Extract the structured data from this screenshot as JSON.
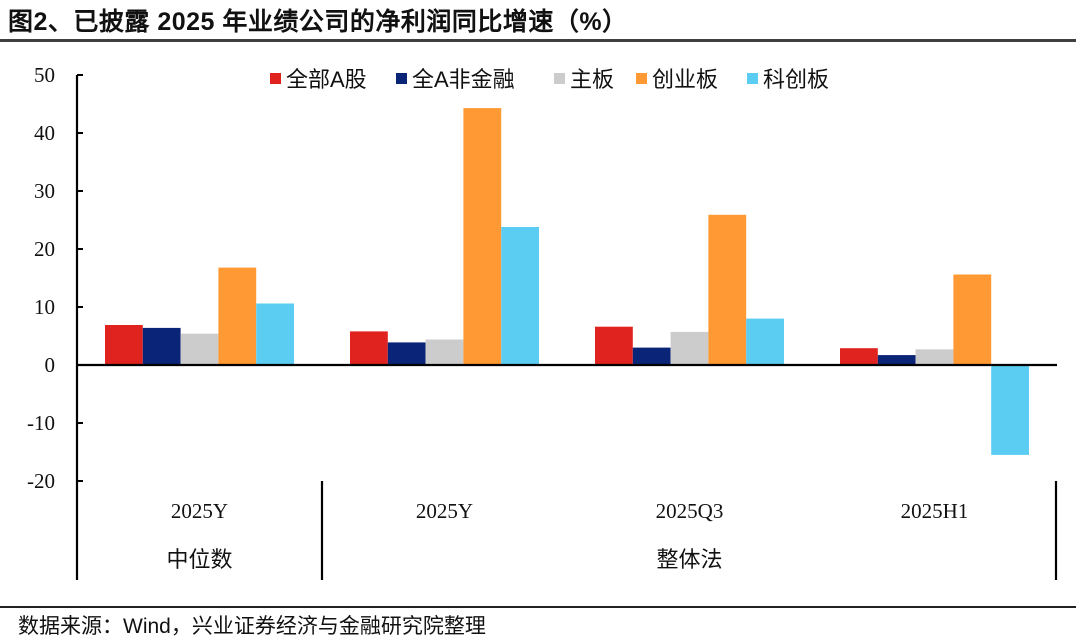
{
  "title": "图2、已披露 2025 年业绩公司的净利润同比增速（%）",
  "source": "数据来源：Wind，兴业证券经济与金融研究院整理",
  "colors": {
    "all_a": "#E0231F",
    "all_a_ex_fin": "#0A2578",
    "main_board": "#CCCCCC",
    "chinext": "#FF9933",
    "star": "#5BCDF3"
  },
  "chart_data": {
    "type": "bar",
    "title": "已披露 2025 年业绩公司的净利润同比增速（%）",
    "xlabel": "",
    "ylabel": "%",
    "ylim": [
      -20,
      50
    ],
    "yticks": [
      50,
      40,
      30,
      20,
      10,
      0,
      -10,
      -20
    ],
    "grid": false,
    "legend_position": "top",
    "categories": [
      "2025Y",
      "2025Y",
      "2025Q3",
      "2025H1"
    ],
    "category_groups": [
      {
        "label": "中位数",
        "categories": [
          "2025Y"
        ]
      },
      {
        "label": "整体法",
        "categories": [
          "2025Y",
          "2025Q3",
          "2025H1"
        ]
      }
    ],
    "series": [
      {
        "name": "全部A股",
        "color": "#E0231F",
        "values": [
          6.9,
          5.8,
          6.6,
          2.9
        ]
      },
      {
        "name": "全A非金融",
        "color": "#0A2578",
        "values": [
          6.4,
          3.9,
          3.0,
          1.7
        ]
      },
      {
        "name": "主板",
        "color": "#CCCCCC",
        "values": [
          5.4,
          4.4,
          5.7,
          2.7
        ]
      },
      {
        "name": "创业板",
        "color": "#FF9933",
        "values": [
          16.8,
          44.3,
          25.9,
          15.6
        ]
      },
      {
        "name": "科创板",
        "color": "#5BCDF3",
        "values": [
          10.6,
          23.8,
          8.0,
          -15.5
        ]
      }
    ]
  }
}
